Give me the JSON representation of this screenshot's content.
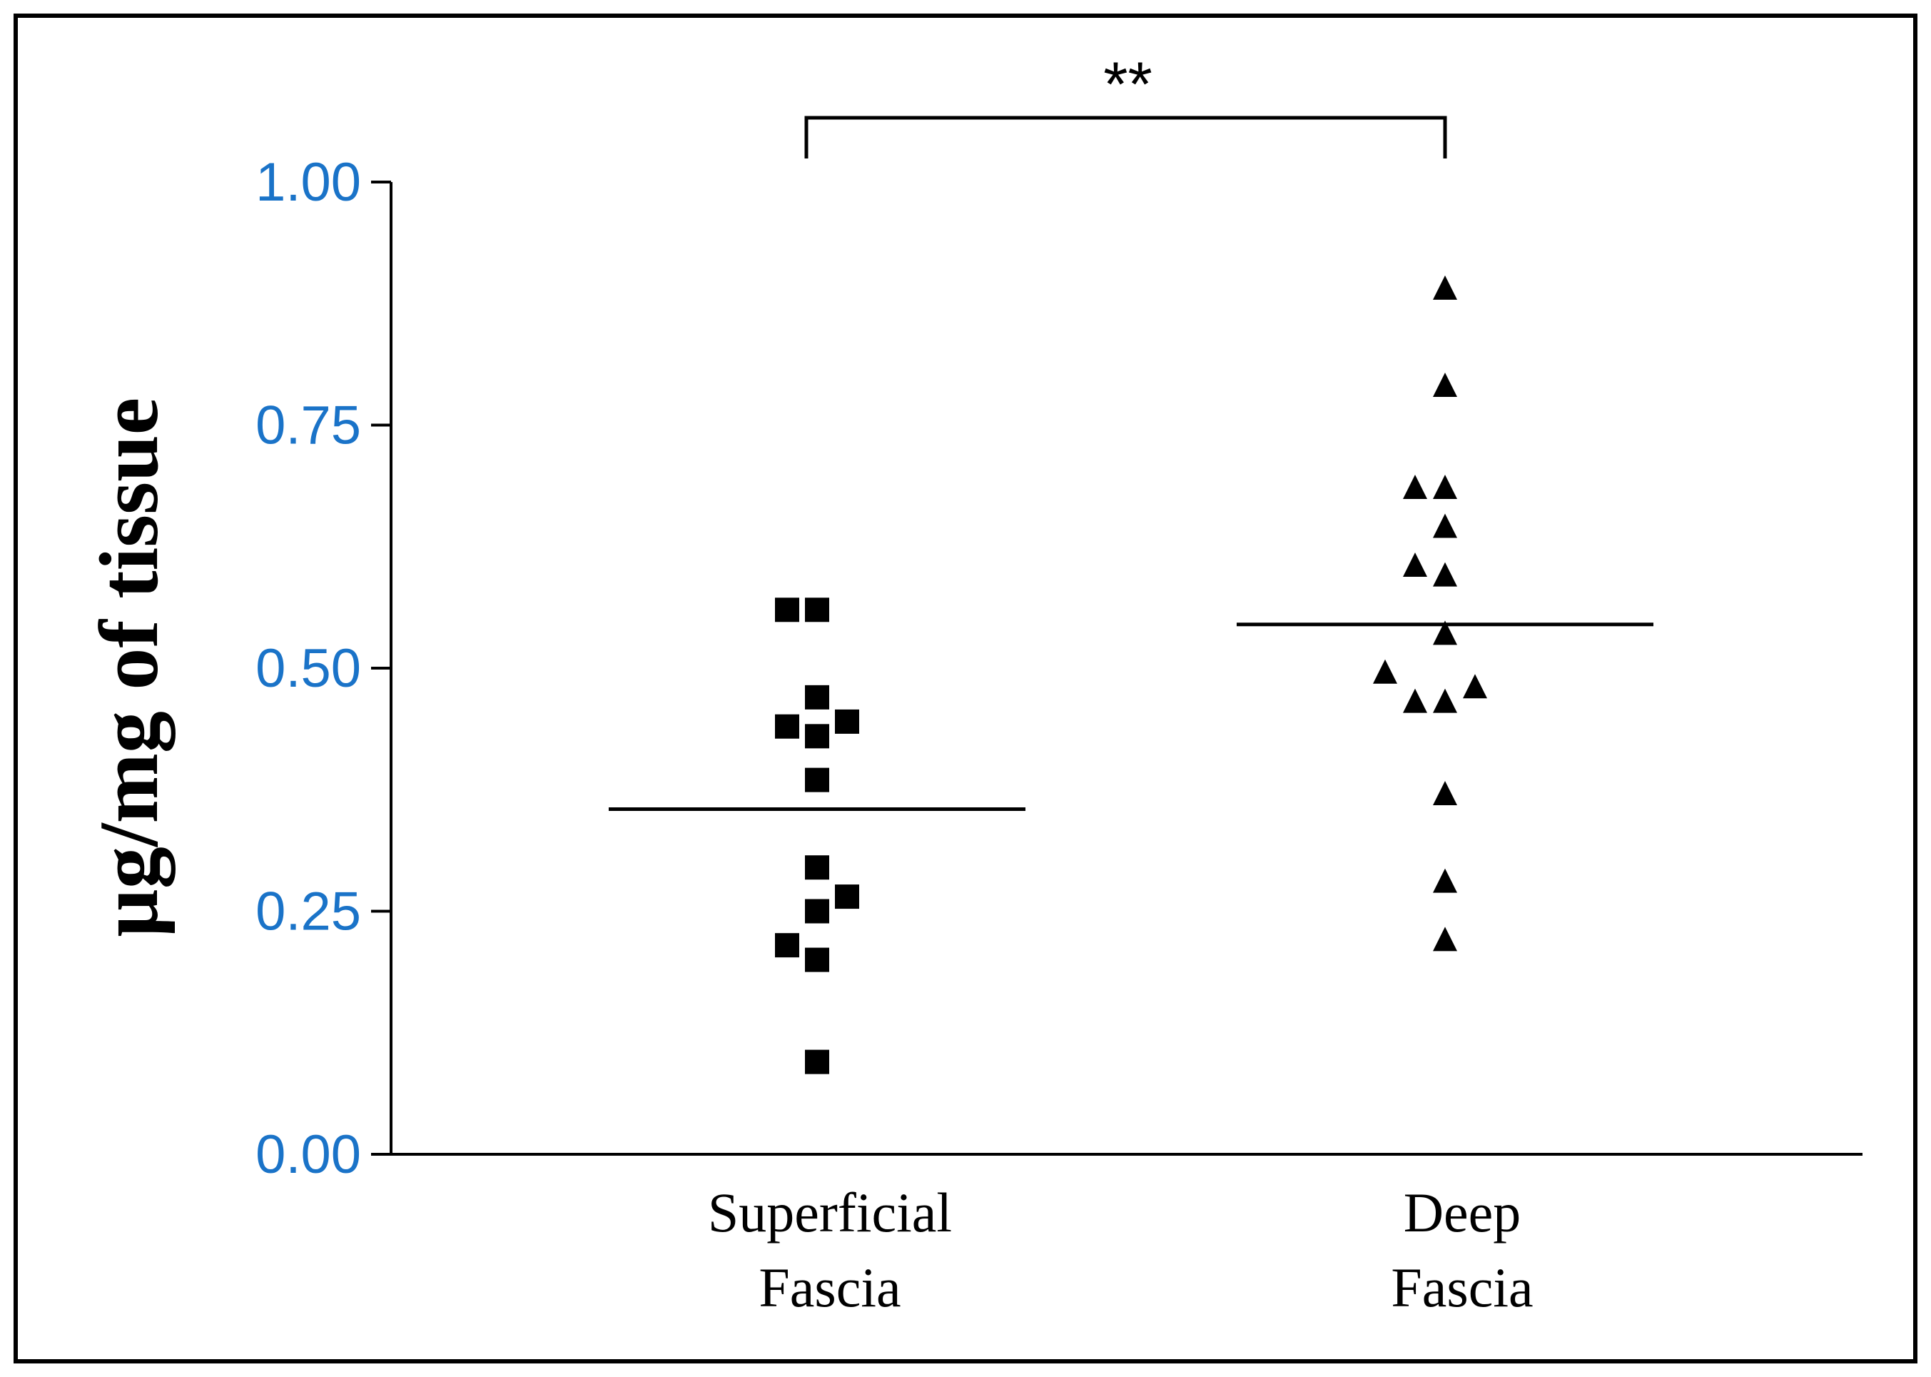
{
  "chart_data": {
    "type": "scatter",
    "title": "",
    "xlabel": "",
    "ylabel": "µg/mg of tissue",
    "ylim": [
      0,
      1
    ],
    "yticks": [
      "0.00",
      "0.25",
      "0.50",
      "0.75",
      "1.00"
    ],
    "tick_color": "#1a73c8",
    "grid": false,
    "categories": [
      {
        "id": "superficial",
        "lines": [
          "Superficial",
          "Fascia"
        ]
      },
      {
        "id": "deep",
        "lines": [
          "Deep",
          "Fascia"
        ]
      }
    ],
    "series": [
      {
        "name": "Superficial Fascia",
        "marker": "square",
        "mean": 0.355,
        "points": [
          {
            "y": 0.56,
            "jitter": -1
          },
          {
            "y": 0.56,
            "jitter": 0
          },
          {
            "y": 0.47,
            "jitter": 0
          },
          {
            "y": 0.44,
            "jitter": -1
          },
          {
            "y": 0.445,
            "jitter": 1
          },
          {
            "y": 0.43,
            "jitter": 0
          },
          {
            "y": 0.385,
            "jitter": 0
          },
          {
            "y": 0.295,
            "jitter": 0
          },
          {
            "y": 0.265,
            "jitter": 1
          },
          {
            "y": 0.25,
            "jitter": 0
          },
          {
            "y": 0.215,
            "jitter": -1
          },
          {
            "y": 0.2,
            "jitter": 0
          },
          {
            "y": 0.095,
            "jitter": 0
          }
        ]
      },
      {
        "name": "Deep Fascia",
        "marker": "triangle",
        "mean": 0.545,
        "points": [
          {
            "y": 0.89,
            "jitter": 0
          },
          {
            "y": 0.79,
            "jitter": 0
          },
          {
            "y": 0.685,
            "jitter": -1
          },
          {
            "y": 0.685,
            "jitter": 0
          },
          {
            "y": 0.645,
            "jitter": 0
          },
          {
            "y": 0.605,
            "jitter": -1
          },
          {
            "y": 0.595,
            "jitter": 0
          },
          {
            "y": 0.535,
            "jitter": 0
          },
          {
            "y": 0.495,
            "jitter": -2
          },
          {
            "y": 0.48,
            "jitter": 1
          },
          {
            "y": 0.465,
            "jitter": -1
          },
          {
            "y": 0.465,
            "jitter": 0
          },
          {
            "y": 0.37,
            "jitter": 0
          },
          {
            "y": 0.28,
            "jitter": 0
          },
          {
            "y": 0.22,
            "jitter": 0
          }
        ]
      }
    ],
    "annotations": [
      {
        "type": "significance_bracket",
        "from": "Superficial Fascia",
        "to": "Deep Fascia",
        "text": "**"
      }
    ]
  }
}
